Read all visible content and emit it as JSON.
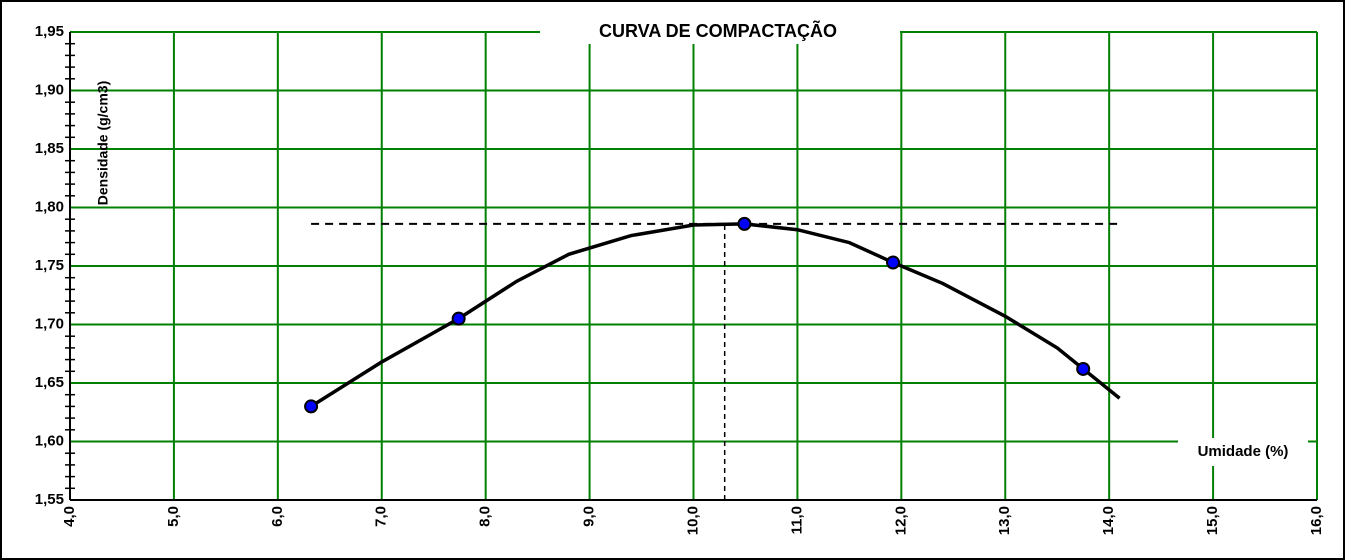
{
  "chart_data": {
    "type": "line",
    "title": "CURVA DE COMPACTAÇÃO",
    "xlabel": "Umidade (%)",
    "ylabel": "Densidade (g/cm3)",
    "xlim": [
      4,
      16
    ],
    "ylim": [
      1.55,
      1.95
    ],
    "xticks": [
      {
        "value": 4,
        "label": "4,0"
      },
      {
        "value": 5,
        "label": "5,0"
      },
      {
        "value": 6,
        "label": "6,0"
      },
      {
        "value": 7,
        "label": "7,0"
      },
      {
        "value": 8,
        "label": "8,0"
      },
      {
        "value": 9,
        "label": "9,0"
      },
      {
        "value": 10,
        "label": "10,0"
      },
      {
        "value": 11,
        "label": "11,0"
      },
      {
        "value": 12,
        "label": "12,0"
      },
      {
        "value": 13,
        "label": "13,0"
      },
      {
        "value": 14,
        "label": "14,0"
      },
      {
        "value": 15,
        "label": "15,0"
      },
      {
        "value": 16,
        "label": "16,0"
      }
    ],
    "yticks": [
      {
        "value": 1.55,
        "label": "1,55"
      },
      {
        "value": 1.6,
        "label": "1,60"
      },
      {
        "value": 1.65,
        "label": "1,65"
      },
      {
        "value": 1.7,
        "label": "1,70"
      },
      {
        "value": 1.75,
        "label": "1,75"
      },
      {
        "value": 1.8,
        "label": "1,80"
      },
      {
        "value": 1.85,
        "label": "1,85"
      },
      {
        "value": 1.9,
        "label": "1,90"
      },
      {
        "value": 1.95,
        "label": "1,95"
      }
    ],
    "grid": true,
    "grid_color": "#008000",
    "curve": {
      "color": "#000000",
      "x": [
        6.32,
        7,
        7.74,
        8.3,
        8.8,
        9.4,
        10,
        10.49,
        11,
        11.5,
        11.92,
        12.4,
        13,
        13.5,
        14.1
      ],
      "values": [
        1.63,
        1.668,
        1.705,
        1.737,
        1.76,
        1.776,
        1.785,
        1.786,
        1.781,
        1.77,
        1.753,
        1.735,
        1.707,
        1.68,
        1.637
      ]
    },
    "points": {
      "color": "#0000ff",
      "x": [
        6.32,
        7.74,
        10.49,
        11.92,
        13.75
      ],
      "values": [
        1.63,
        1.705,
        1.786,
        1.753,
        1.662
      ]
    },
    "optimum": {
      "x": 10.3,
      "y": 1.786
    }
  }
}
